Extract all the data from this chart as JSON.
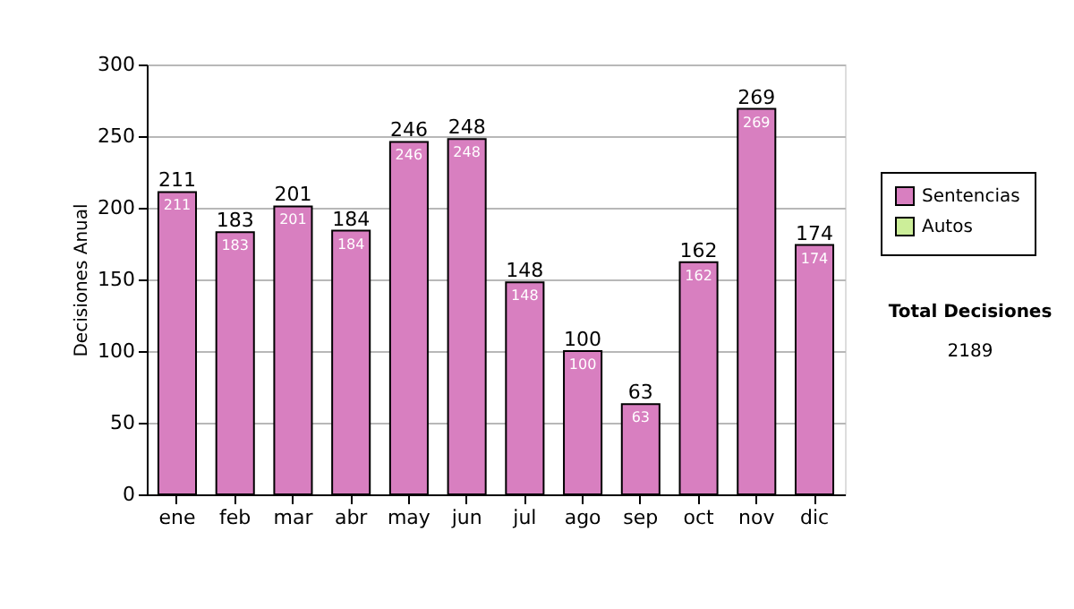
{
  "chart_data": {
    "type": "bar",
    "ylabel": "Decisiones Anual",
    "categories": [
      "ene",
      "feb",
      "mar",
      "abr",
      "may",
      "jun",
      "jul",
      "ago",
      "sep",
      "oct",
      "nov",
      "dic"
    ],
    "series": [
      {
        "name": "Sentencias",
        "color": "#d87fc0",
        "values": [
          211,
          183,
          201,
          184,
          246,
          248,
          148,
          100,
          63,
          162,
          269,
          174
        ]
      },
      {
        "name": "Autos",
        "color": "#ccee99",
        "values": [
          null,
          null,
          null,
          null,
          null,
          null,
          null,
          null,
          null,
          null,
          null,
          null
        ]
      }
    ],
    "stacked": true,
    "data_labels": true,
    "totals": [
      "211",
      "183",
      "201",
      "184",
      "246",
      "248",
      "148",
      "100",
      "63",
      "162",
      "269",
      "174"
    ],
    "ylim": [
      0,
      300
    ],
    "yticks": [
      0,
      50,
      100,
      150,
      200,
      250,
      300
    ],
    "grid": "y",
    "legend": "right",
    "annotations": [
      "Total Decisiones",
      "2189"
    ]
  }
}
